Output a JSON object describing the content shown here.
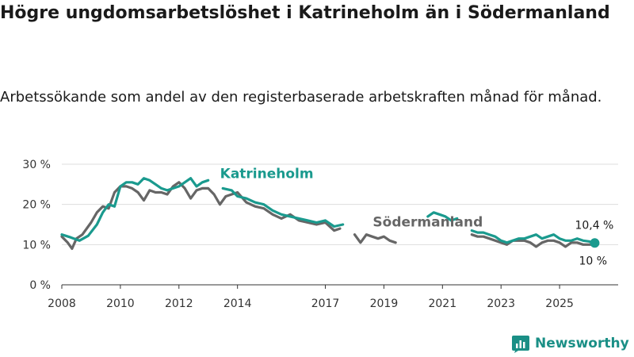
{
  "title": "Högre ungdomsarbetslöshet i Katrineholm än i Södermanland",
  "subtitle": "Arbetssökande som andel av den registerbaserade arbetskraften månad för månad.",
  "brand": {
    "name": "Newsworthy"
  },
  "colors": {
    "katrineholm": "#1a9a8e",
    "sodermanland": "#666666",
    "grid": "#dddddd"
  },
  "chart_data": {
    "type": "line",
    "title": "Högre ungdomsarbetslöshet i Katrineholm än i Södermanland",
    "xlabel": "",
    "ylabel": "",
    "xlim": [
      2008,
      2027
    ],
    "ylim": [
      0,
      30
    ],
    "yticks": [
      0,
      10,
      20,
      30
    ],
    "ytick_labels": [
      "0 %",
      "10 %",
      "20 %",
      "30 %"
    ],
    "xticks": [
      2008,
      2010,
      2012,
      2014,
      2017,
      2019,
      2021,
      2023,
      2025
    ],
    "xtick_labels": [
      "2008",
      "2010",
      "2012",
      "2014",
      "2017",
      "2019",
      "2021",
      "2023",
      "2025"
    ],
    "grid": true,
    "series": [
      {
        "name": "Katrineholm",
        "color": "#1a9a8e",
        "end_label": "10,4 %",
        "segments": [
          {
            "x": [
              2008.0,
              2008.3,
              2008.6,
              2008.9,
              2009.2,
              2009.4,
              2009.6,
              2009.8,
              2010.0,
              2010.2,
              2010.4,
              2010.6,
              2010.8,
              2011.0,
              2011.2,
              2011.4,
              2011.6,
              2011.8,
              2012.0,
              2012.2,
              2012.4,
              2012.6,
              2012.8,
              2013.0
            ],
            "y": [
              12.5,
              11.8,
              11.0,
              12.2,
              15.0,
              18.0,
              20.0,
              19.5,
              24.5,
              25.5,
              25.5,
              25.0,
              26.5,
              26.0,
              25.0,
              24.0,
              23.5,
              24.0,
              24.5,
              25.5,
              26.5,
              24.5,
              25.5,
              26.0
            ]
          },
          {
            "x": [
              2013.5,
              2013.8,
              2014.0,
              2014.3,
              2014.6,
              2014.9,
              2015.2,
              2015.5,
              2015.8,
              2016.1,
              2016.4,
              2016.7,
              2017.0,
              2017.3,
              2017.6
            ],
            "y": [
              24.0,
              23.5,
              22.0,
              21.5,
              20.5,
              20.0,
              18.5,
              17.5,
              17.0,
              16.5,
              16.0,
              15.5,
              16.0,
              14.5,
              15.0
            ]
          },
          {
            "x": [
              2020.5,
              2020.7,
              2020.9,
              2021.1,
              2021.3,
              2021.5
            ],
            "y": [
              17.0,
              18.0,
              17.5,
              17.0,
              16.0,
              16.5
            ]
          },
          {
            "x": [
              2022.0,
              2022.2,
              2022.4,
              2022.6,
              2022.8,
              2023.0,
              2023.2,
              2023.4,
              2023.6,
              2023.8,
              2024.0,
              2024.2,
              2024.4,
              2024.6,
              2024.8,
              2025.0,
              2025.2,
              2025.4,
              2025.6,
              2025.8,
              2026.0,
              2026.2
            ],
            "y": [
              13.5,
              13.0,
              13.0,
              12.5,
              12.0,
              11.0,
              10.5,
              11.0,
              11.5,
              11.5,
              12.0,
              12.5,
              11.5,
              12.0,
              12.5,
              11.5,
              11.0,
              11.0,
              11.5,
              11.0,
              10.8,
              10.4
            ]
          }
        ]
      },
      {
        "name": "Södermanland",
        "color": "#666666",
        "end_label": "10 %",
        "segments": [
          {
            "x": [
              2008.0,
              2008.2,
              2008.35,
              2008.5,
              2008.7,
              2009.0,
              2009.2,
              2009.4,
              2009.6,
              2009.8,
              2010.0,
              2010.2,
              2010.4,
              2010.6,
              2010.8,
              2011.0,
              2011.2,
              2011.4,
              2011.6,
              2011.8,
              2012.0,
              2012.2,
              2012.4,
              2012.6,
              2012.8,
              2013.0,
              2013.2,
              2013.4,
              2013.6,
              2013.8,
              2014.0,
              2014.3,
              2014.6,
              2014.9,
              2015.2,
              2015.5,
              2015.8,
              2016.1,
              2016.4,
              2016.7,
              2017.0,
              2017.3,
              2017.5
            ],
            "y": [
              12.0,
              10.5,
              9.0,
              11.5,
              12.5,
              15.5,
              18.0,
              19.5,
              19.0,
              23.0,
              24.5,
              24.5,
              24.0,
              23.0,
              21.0,
              23.5,
              23.0,
              23.0,
              22.5,
              24.5,
              25.5,
              24.0,
              21.5,
              23.5,
              24.0,
              24.0,
              22.5,
              20.0,
              22.0,
              22.5,
              23.0,
              20.5,
              19.5,
              19.0,
              17.5,
              16.5,
              17.5,
              16.0,
              15.5,
              15.0,
              15.5,
              13.5,
              14.0
            ]
          },
          {
            "x": [
              2018.0,
              2018.2,
              2018.4,
              2018.6,
              2018.8,
              2019.0,
              2019.2,
              2019.4
            ],
            "y": [
              12.5,
              10.5,
              12.5,
              12.0,
              11.5,
              12.0,
              11.0,
              10.5
            ]
          },
          {
            "x": [
              2022.0,
              2022.2,
              2022.4,
              2022.6,
              2022.8,
              2023.0,
              2023.2,
              2023.4,
              2023.6,
              2023.8,
              2024.0,
              2024.2,
              2024.4,
              2024.6,
              2024.8,
              2025.0,
              2025.2,
              2025.4,
              2025.6,
              2025.8,
              2026.0,
              2026.2
            ],
            "y": [
              12.5,
              12.0,
              12.0,
              11.5,
              11.0,
              10.5,
              10.0,
              11.0,
              11.0,
              11.0,
              10.5,
              9.5,
              10.5,
              11.0,
              11.0,
              10.5,
              9.5,
              10.5,
              10.5,
              10.0,
              10.0,
              10.0
            ]
          }
        ]
      }
    ],
    "annotations": [
      {
        "text": "Katrineholm",
        "series": "Katrineholm",
        "x": 2015.0,
        "y": 26.5
      },
      {
        "text": "Södermanland",
        "series": "Södermanland",
        "x": 2020.5,
        "y": 14.5
      }
    ]
  }
}
